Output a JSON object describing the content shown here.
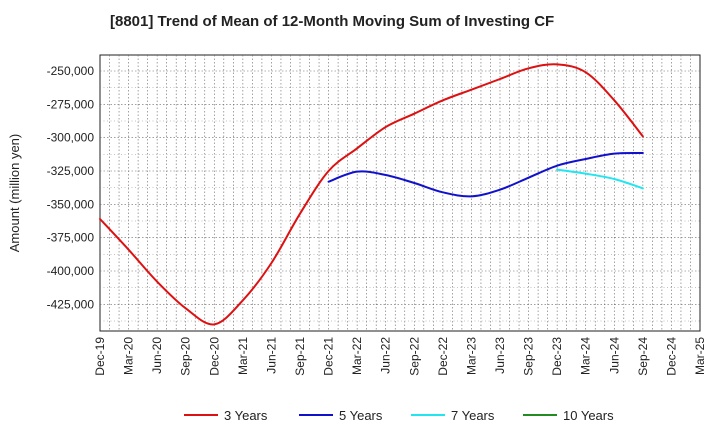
{
  "chart_data": {
    "type": "line",
    "title": "[8801]  Trend of Mean of 12-Month Moving Sum of Investing CF",
    "xlabel": "",
    "ylabel": "Amount (million yen)",
    "ylim": [
      -445000,
      -238000
    ],
    "yticks": [
      -250000,
      -275000,
      -300000,
      -325000,
      -350000,
      -375000,
      -400000,
      -425000
    ],
    "ytick_labels": [
      "-250,000",
      "-275,000",
      "-300,000",
      "-325,000",
      "-350,000",
      "-375,000",
      "-400,000",
      "-425,000"
    ],
    "categories": [
      "Dec-19",
      "Mar-20",
      "Jun-20",
      "Sep-20",
      "Dec-20",
      "Mar-21",
      "Jun-21",
      "Sep-21",
      "Dec-21",
      "Mar-22",
      "Jun-22",
      "Sep-22",
      "Dec-22",
      "Mar-23",
      "Jun-23",
      "Sep-23",
      "Dec-23",
      "Mar-24",
      "Jun-24",
      "Sep-24",
      "Dec-24",
      "Mar-25"
    ],
    "grid": true,
    "legend_position": "bottom",
    "series": [
      {
        "name": "3 Years",
        "color": "#dd1111",
        "values": [
          -361000,
          -384000,
          -408000,
          -428000,
          -440000,
          -422000,
          -394000,
          -357000,
          -325000,
          -308000,
          -292000,
          -282000,
          -272000,
          -264000,
          -256000,
          -248000,
          -245000,
          -251000,
          -272000,
          -299000,
          null,
          null
        ]
      },
      {
        "name": "5 Years",
        "color": "#1111cc",
        "values": [
          null,
          null,
          null,
          null,
          null,
          null,
          null,
          null,
          -333000,
          -325500,
          -328000,
          -334000,
          -341000,
          -344000,
          -339000,
          -330000,
          -321000,
          -316000,
          -312000,
          -311500,
          null,
          null
        ]
      },
      {
        "name": "7 Years",
        "color": "#22e5f0",
        "values": [
          null,
          null,
          null,
          null,
          null,
          null,
          null,
          null,
          null,
          null,
          null,
          null,
          null,
          null,
          null,
          null,
          -324000,
          -327000,
          -331000,
          -338000,
          null,
          null
        ]
      },
      {
        "name": "10 Years",
        "color": "#228b22",
        "values": [
          null,
          null,
          null,
          null,
          null,
          null,
          null,
          null,
          null,
          null,
          null,
          null,
          null,
          null,
          null,
          null,
          null,
          null,
          null,
          null,
          null,
          null
        ]
      }
    ]
  }
}
